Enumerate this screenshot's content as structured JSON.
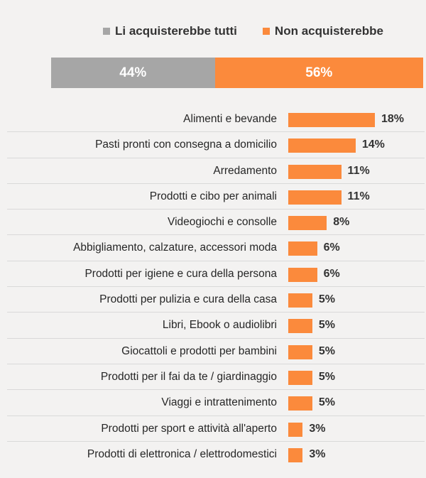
{
  "chart_data": [
    {
      "type": "bar",
      "orientation": "horizontal",
      "stacked": true,
      "legend": [
        {
          "label": "Li acquisterebbe tutti",
          "color": "#a6a6a6"
        },
        {
          "label": "Non acquisterebbe",
          "color": "#fb8a3c"
        }
      ],
      "series": [
        {
          "name": "Li acquisterebbe tutti",
          "value": 44,
          "label": "44%"
        },
        {
          "name": "Non acquisterebbe",
          "value": 56,
          "label": "56%"
        }
      ]
    },
    {
      "type": "bar",
      "orientation": "horizontal",
      "color": "#fb8a3c",
      "xlim": [
        0,
        18
      ],
      "categories": [
        "Alimenti e bevande",
        "Pasti pronti con consegna a domicilio",
        "Arredamento",
        "Prodotti e cibo per animali",
        "Videogiochi e consolle",
        "Abbigliamento, calzature, accessori moda",
        "Prodotti per igiene e cura della persona",
        "Prodotti per pulizia e cura della casa",
        "Libri, Ebook o audiolibri",
        "Giocattoli e prodotti per bambini",
        "Prodotti per il fai da te / giardinaggio",
        "Viaggi e intrattenimento",
        "Prodotti per sport e attività all'aperto",
        "Prodotti di elettronica / elettrodomestici"
      ],
      "values": [
        18,
        14,
        11,
        11,
        8,
        6,
        6,
        5,
        5,
        5,
        5,
        5,
        3,
        3
      ],
      "value_labels": [
        "18%",
        "14%",
        "11%",
        "11%",
        "8%",
        "6%",
        "6%",
        "5%",
        "5%",
        "5%",
        "5%",
        "5%",
        "3%",
        "3%"
      ]
    }
  ]
}
